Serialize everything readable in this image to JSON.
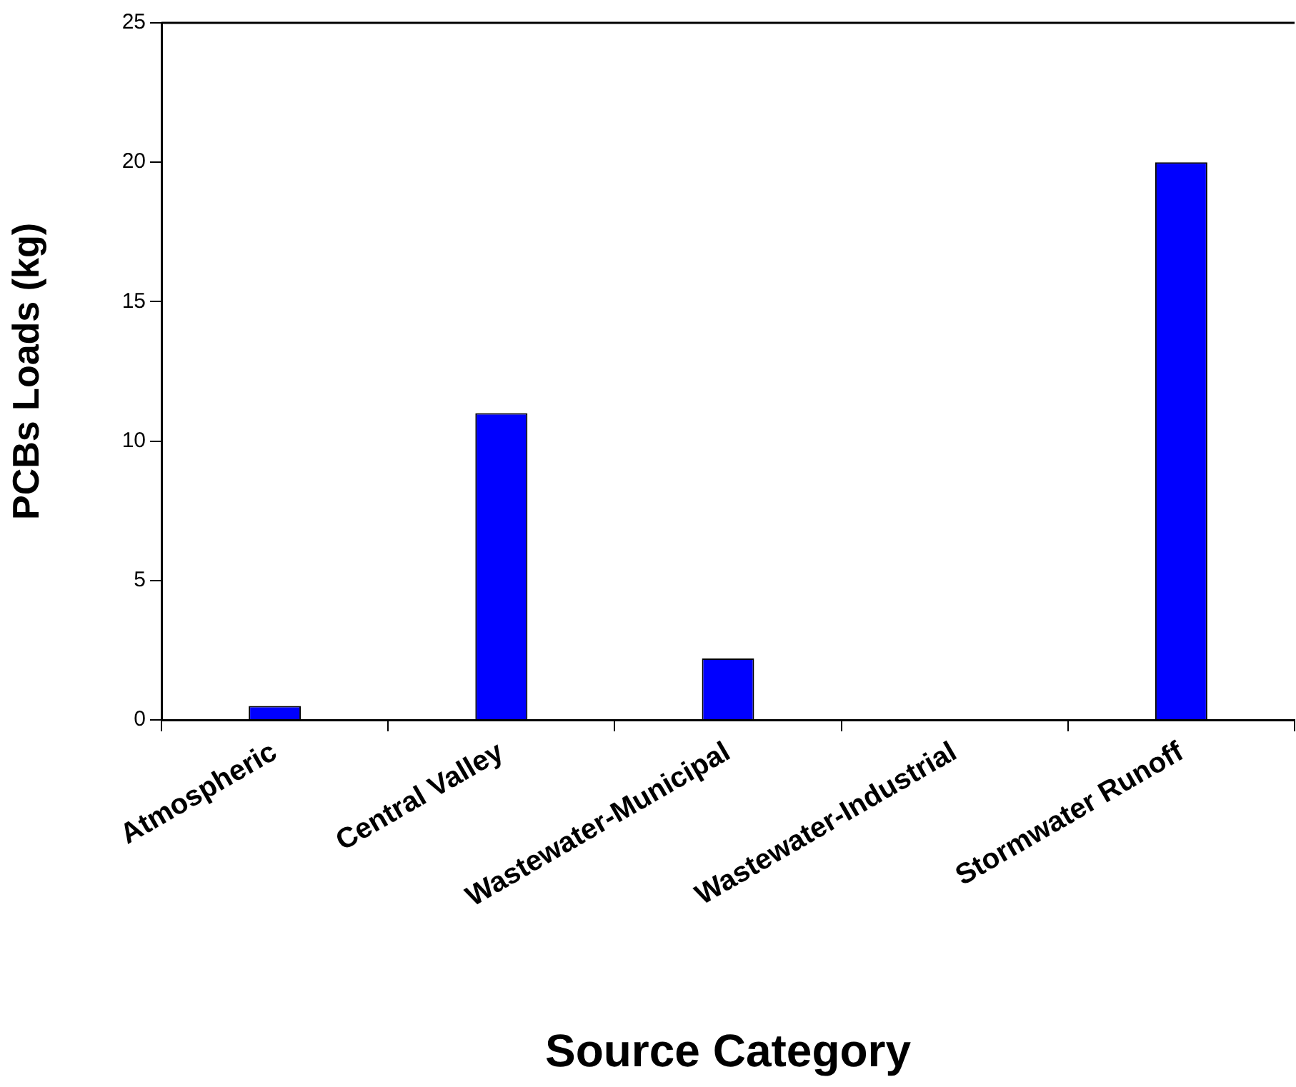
{
  "chart_data": {
    "type": "bar",
    "xlabel": "Source Category",
    "ylabel": "PCBs Loads (kg)",
    "categories": [
      "Atmospheric",
      "Central Valley",
      "Wastewater-Municipal",
      "Wastewater-Industrial",
      "Stormwater Runoff"
    ],
    "values": [
      0.5,
      11,
      2.2,
      0,
      20
    ],
    "color": "#0000ff",
    "ylim": [
      0,
      25
    ],
    "yticks": [
      0,
      5,
      10,
      15,
      20,
      25
    ],
    "grid": false,
    "legend": false
  }
}
